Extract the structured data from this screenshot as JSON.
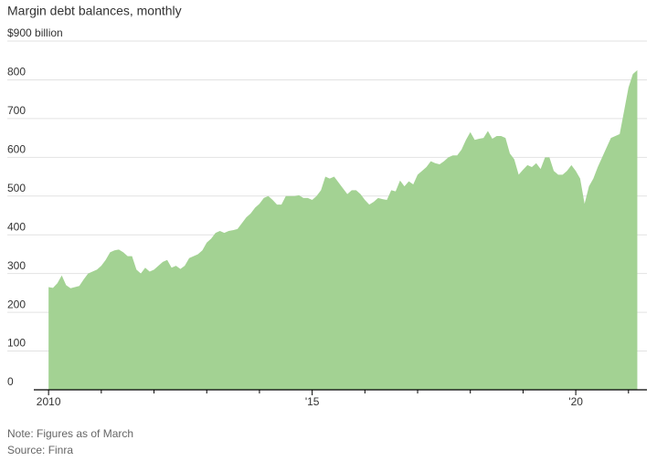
{
  "chart_data": {
    "type": "area",
    "title": "Margin debt balances, monthly",
    "note": "Note: Figures as of March",
    "source": "Source: Finra",
    "color": "#a3d293",
    "grid": true,
    "xlim": [
      2009.72,
      2021.35
    ],
    "ylim": [
      0,
      900
    ],
    "yticks": [
      0,
      100,
      200,
      300,
      400,
      500,
      600,
      700,
      800,
      {
        "value": 900,
        "label": "$900 billion"
      }
    ],
    "xticks": [
      2010,
      {
        "value": 2015,
        "label": "'15"
      },
      {
        "value": 2020,
        "label": "'20"
      }
    ],
    "xminorticks": [
      2011,
      2012,
      2013,
      2014,
      2016,
      2017,
      2018,
      2019,
      2021
    ],
    "x": [
      2010,
      2010.083,
      2010.167,
      2010.25,
      2010.333,
      2010.417,
      2010.5,
      2010.583,
      2010.667,
      2010.75,
      2010.833,
      2010.917,
      2011,
      2011.083,
      2011.167,
      2011.25,
      2011.333,
      2011.417,
      2011.5,
      2011.583,
      2011.667,
      2011.75,
      2011.833,
      2011.917,
      2012,
      2012.083,
      2012.167,
      2012.25,
      2012.333,
      2012.417,
      2012.5,
      2012.583,
      2012.667,
      2012.75,
      2012.833,
      2012.917,
      2013,
      2013.083,
      2013.167,
      2013.25,
      2013.333,
      2013.417,
      2013.5,
      2013.583,
      2013.667,
      2013.75,
      2013.833,
      2013.917,
      2014,
      2014.083,
      2014.167,
      2014.25,
      2014.333,
      2014.417,
      2014.5,
      2014.583,
      2014.667,
      2014.75,
      2014.833,
      2014.917,
      2015,
      2015.083,
      2015.167,
      2015.25,
      2015.333,
      2015.417,
      2015.5,
      2015.583,
      2015.667,
      2015.75,
      2015.833,
      2015.917,
      2016,
      2016.083,
      2016.167,
      2016.25,
      2016.333,
      2016.417,
      2016.5,
      2016.583,
      2016.667,
      2016.75,
      2016.833,
      2016.917,
      2017,
      2017.083,
      2017.167,
      2017.25,
      2017.333,
      2017.417,
      2017.5,
      2017.583,
      2017.667,
      2017.75,
      2017.833,
      2017.917,
      2018,
      2018.083,
      2018.167,
      2018.25,
      2018.333,
      2018.417,
      2018.5,
      2018.583,
      2018.667,
      2018.75,
      2018.833,
      2018.917,
      2019,
      2019.083,
      2019.167,
      2019.25,
      2019.333,
      2019.417,
      2019.5,
      2019.583,
      2019.667,
      2019.75,
      2019.833,
      2019.917,
      2020,
      2020.083,
      2020.167,
      2020.25,
      2020.333,
      2020.417,
      2020.5,
      2020.583,
      2020.667,
      2020.75,
      2020.833,
      2020.917,
      2021,
      2021.083,
      2021.167
    ],
    "values": [
      265,
      263,
      275,
      295,
      270,
      262,
      265,
      268,
      285,
      300,
      305,
      310,
      320,
      335,
      355,
      360,
      362,
      355,
      345,
      345,
      310,
      300,
      315,
      305,
      310,
      320,
      330,
      335,
      315,
      320,
      312,
      320,
      340,
      345,
      350,
      360,
      380,
      390,
      405,
      410,
      405,
      410,
      412,
      415,
      430,
      445,
      455,
      470,
      480,
      495,
      500,
      490,
      478,
      478,
      500,
      500,
      500,
      502,
      495,
      495,
      490,
      500,
      515,
      550,
      545,
      550,
      535,
      520,
      505,
      515,
      515,
      505,
      490,
      478,
      485,
      495,
      492,
      490,
      515,
      512,
      540,
      525,
      538,
      530,
      555,
      565,
      575,
      590,
      585,
      582,
      590,
      600,
      605,
      605,
      620,
      645,
      665,
      645,
      648,
      650,
      668,
      648,
      655,
      655,
      650,
      610,
      595,
      555,
      568,
      580,
      575,
      585,
      570,
      600,
      600,
      565,
      555,
      555,
      565,
      580,
      565,
      545,
      480,
      525,
      545,
      575,
      600,
      625,
      650,
      655,
      660,
      720,
      780,
      815,
      825
    ]
  }
}
